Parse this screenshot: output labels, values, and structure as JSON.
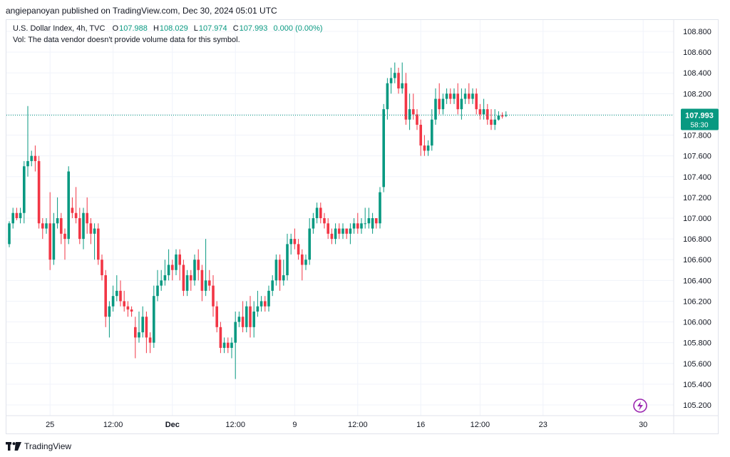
{
  "header": {
    "published": "angiepanoyan published on TradingView.com, Dec 30, 2024 05:01 UTC"
  },
  "legend": {
    "symbol": "U.S. Dollar Index, 4h, TVC",
    "open_label": "O",
    "open": "107.988",
    "high_label": "H",
    "high": "108.029",
    "low_label": "L",
    "low": "107.974",
    "close_label": "C",
    "close": "107.993",
    "change": "0.000 (0.00%)",
    "vol_note": "Vol: The data vendor doesn't provide volume data for this symbol."
  },
  "price_tag": {
    "price": "107.993",
    "countdown": "58:30"
  },
  "footer": {
    "brand": "TradingView"
  },
  "colors": {
    "up": "#089981",
    "down": "#f23645",
    "grid": "#f0f3fa",
    "last_price_line": "#089981"
  },
  "chart_data": {
    "type": "candlestick",
    "title": "",
    "y_axis": {
      "side": "right",
      "ticks": [
        "108.800",
        "108.600",
        "108.400",
        "108.200",
        "108.000",
        "107.800",
        "107.600",
        "107.400",
        "107.200",
        "107.000",
        "106.800",
        "106.600",
        "106.400",
        "106.200",
        "106.000",
        "105.800",
        "105.600",
        "105.400",
        "105.200"
      ],
      "range": [
        105.1,
        108.9
      ]
    },
    "x_axis": {
      "ticks": [
        {
          "label": "25",
          "bar": 11,
          "bold": false
        },
        {
          "label": "12:00",
          "bar": 28,
          "bold": false
        },
        {
          "label": "Dec",
          "bar": 44,
          "bold": true
        },
        {
          "label": "12:00",
          "bar": 61,
          "bold": false
        },
        {
          "label": "9",
          "bar": 77,
          "bold": false
        },
        {
          "label": "12:00",
          "bar": 94,
          "bold": false
        },
        {
          "label": "16",
          "bar": 111,
          "bold": false
        },
        {
          "label": "12:00",
          "bar": 127,
          "bold": false
        },
        {
          "label": "23",
          "bar": 144,
          "bold": false
        },
        {
          "label": "30",
          "bar": 171,
          "bold": false
        }
      ]
    },
    "last_price": 107.993,
    "candles": [
      [
        106.75,
        106.95,
        106.72,
        106.97
      ],
      [
        106.95,
        107.05,
        106.9,
        107.1
      ],
      [
        107.05,
        107.0,
        106.98,
        107.1
      ],
      [
        107.0,
        107.05,
        106.95,
        107.1
      ],
      [
        107.05,
        107.5,
        106.95,
        107.55
      ],
      [
        107.5,
        107.55,
        107.4,
        108.08
      ],
      [
        107.55,
        107.6,
        107.5,
        107.65
      ],
      [
        107.6,
        107.55,
        107.45,
        107.7
      ],
      [
        107.55,
        106.95,
        106.9,
        107.6
      ],
      [
        106.95,
        106.9,
        106.8,
        107.0
      ],
      [
        106.9,
        106.95,
        106.85,
        107.0
      ],
      [
        106.95,
        106.6,
        106.5,
        107.25
      ],
      [
        106.6,
        106.95,
        106.55,
        107.05
      ],
      [
        106.95,
        107.0,
        106.9,
        107.2
      ],
      [
        107.0,
        106.85,
        106.75,
        107.05
      ],
      [
        106.85,
        106.8,
        106.6,
        106.9
      ],
      [
        106.8,
        107.45,
        106.75,
        107.5
      ],
      [
        107.1,
        107.05,
        107.0,
        107.2
      ],
      [
        107.05,
        107.0,
        106.95,
        107.3
      ],
      [
        107.0,
        106.8,
        106.75,
        107.1
      ],
      [
        106.8,
        107.05,
        106.7,
        107.1
      ],
      [
        107.05,
        106.95,
        106.85,
        107.2
      ],
      [
        106.95,
        106.85,
        106.75,
        107.0
      ],
      [
        106.85,
        106.9,
        106.6,
        106.95
      ],
      [
        106.9,
        106.6,
        106.55,
        106.95
      ],
      [
        106.6,
        106.45,
        106.4,
        106.65
      ],
      [
        106.45,
        106.05,
        105.95,
        106.5
      ],
      [
        106.05,
        106.15,
        105.85,
        106.2
      ],
      [
        106.15,
        106.25,
        106.1,
        106.35
      ],
      [
        106.25,
        106.3,
        106.2,
        106.45
      ],
      [
        106.3,
        106.2,
        106.15,
        106.4
      ],
      [
        106.2,
        106.15,
        106.1,
        106.3
      ],
      [
        106.15,
        106.12,
        106.05,
        106.2
      ],
      [
        106.12,
        106.1,
        106.05,
        106.15
      ],
      [
        105.95,
        105.85,
        105.65,
        106.05
      ],
      [
        105.85,
        105.9,
        105.8,
        106.1
      ],
      [
        105.9,
        106.05,
        105.85,
        106.15
      ],
      [
        106.05,
        105.85,
        105.7,
        106.1
      ],
      [
        105.85,
        105.8,
        105.7,
        105.9
      ],
      [
        105.8,
        106.25,
        105.75,
        106.35
      ],
      [
        106.25,
        106.35,
        106.2,
        106.5
      ],
      [
        106.35,
        106.4,
        106.3,
        106.5
      ],
      [
        106.4,
        106.45,
        106.35,
        106.6
      ],
      [
        106.45,
        106.55,
        106.4,
        106.7
      ],
      [
        106.55,
        106.5,
        106.4,
        106.6
      ],
      [
        106.5,
        106.65,
        106.45,
        106.7
      ],
      [
        106.65,
        106.55,
        106.4,
        106.7
      ],
      [
        106.55,
        106.3,
        106.25,
        106.6
      ],
      [
        106.3,
        106.45,
        106.25,
        106.5
      ],
      [
        106.45,
        106.4,
        106.3,
        106.5
      ],
      [
        106.4,
        106.6,
        106.35,
        106.65
      ],
      [
        106.6,
        106.5,
        106.4,
        106.7
      ],
      [
        106.5,
        106.3,
        106.2,
        106.55
      ],
      [
        106.3,
        106.4,
        106.25,
        106.8
      ],
      [
        106.4,
        106.35,
        106.3,
        106.5
      ],
      [
        106.35,
        106.15,
        106.05,
        106.45
      ],
      [
        106.15,
        105.95,
        105.9,
        106.2
      ],
      [
        105.95,
        105.75,
        105.7,
        106.0
      ],
      [
        105.75,
        105.8,
        105.7,
        105.85
      ],
      [
        105.8,
        105.75,
        105.7,
        105.85
      ],
      [
        105.75,
        105.8,
        105.65,
        105.85
      ],
      [
        105.8,
        106.0,
        105.45,
        106.1
      ],
      [
        106.0,
        106.05,
        105.95,
        106.1
      ],
      [
        106.05,
        105.95,
        105.9,
        106.2
      ],
      [
        105.95,
        106.15,
        105.9,
        106.2
      ],
      [
        106.15,
        105.95,
        105.85,
        106.25
      ],
      [
        105.95,
        106.1,
        105.85,
        106.2
      ],
      [
        106.1,
        106.15,
        106.05,
        106.3
      ],
      [
        106.15,
        106.2,
        106.1,
        106.25
      ],
      [
        106.2,
        106.15,
        106.1,
        106.25
      ],
      [
        106.15,
        106.3,
        106.1,
        106.35
      ],
      [
        106.3,
        106.4,
        106.25,
        106.45
      ],
      [
        106.4,
        106.6,
        106.35,
        106.65
      ],
      [
        106.6,
        106.4,
        106.3,
        106.65
      ],
      [
        106.4,
        106.45,
        106.35,
        106.6
      ],
      [
        106.45,
        106.75,
        106.4,
        106.85
      ],
      [
        106.75,
        106.8,
        106.65,
        106.85
      ],
      [
        106.8,
        106.75,
        106.7,
        106.9
      ],
      [
        106.75,
        106.65,
        106.6,
        106.8
      ],
      [
        106.65,
        106.55,
        106.4,
        106.7
      ],
      [
        106.55,
        106.6,
        106.5,
        106.65
      ],
      [
        106.6,
        106.9,
        106.55,
        107.0
      ],
      [
        106.9,
        107.0,
        106.85,
        107.05
      ],
      [
        107.0,
        107.1,
        106.95,
        107.15
      ],
      [
        107.1,
        107.0,
        106.95,
        107.15
      ],
      [
        107.0,
        106.95,
        106.9,
        107.05
      ],
      [
        106.95,
        106.85,
        106.8,
        107.0
      ],
      [
        106.85,
        106.8,
        106.75,
        106.9
      ],
      [
        106.8,
        106.9,
        106.75,
        106.95
      ],
      [
        106.9,
        106.85,
        106.8,
        106.95
      ],
      [
        106.85,
        106.9,
        106.8,
        106.95
      ],
      [
        106.9,
        106.85,
        106.8,
        106.9
      ],
      [
        106.85,
        106.9,
        106.75,
        106.95
      ],
      [
        106.9,
        106.95,
        106.85,
        107.0
      ],
      [
        106.95,
        106.9,
        106.85,
        107.05
      ],
      [
        106.9,
        106.95,
        106.85,
        107.0
      ],
      [
        106.95,
        106.95,
        106.9,
        107.1
      ],
      [
        106.95,
        107.0,
        106.9,
        107.1
      ],
      [
        106.9,
        107.0,
        106.85,
        107.05
      ],
      [
        107.0,
        106.95,
        106.9,
        107.0
      ],
      [
        106.95,
        107.25,
        106.9,
        107.3
      ],
      [
        107.3,
        108.05,
        107.25,
        108.1
      ],
      [
        108.05,
        108.3,
        107.95,
        108.35
      ],
      [
        108.3,
        108.35,
        108.2,
        108.45
      ],
      [
        108.35,
        108.4,
        108.3,
        108.5
      ],
      [
        108.4,
        108.25,
        108.2,
        108.45
      ],
      [
        108.25,
        108.3,
        108.2,
        108.5
      ],
      [
        108.3,
        107.95,
        107.9,
        108.4
      ],
      [
        107.95,
        108.05,
        107.85,
        108.2
      ],
      [
        108.05,
        108.0,
        107.95,
        108.2
      ],
      [
        108.0,
        107.9,
        107.85,
        108.05
      ],
      [
        107.9,
        107.7,
        107.6,
        107.95
      ],
      [
        107.7,
        107.65,
        107.6,
        107.8
      ],
      [
        107.65,
        107.7,
        107.6,
        107.75
      ],
      [
        107.7,
        107.95,
        107.65,
        108.05
      ],
      [
        107.95,
        108.15,
        107.9,
        108.25
      ],
      [
        108.15,
        108.05,
        108.0,
        108.3
      ],
      [
        108.05,
        108.15,
        108.0,
        108.2
      ],
      [
        108.15,
        108.2,
        108.1,
        108.25
      ],
      [
        108.2,
        108.15,
        108.1,
        108.25
      ],
      [
        108.15,
        108.2,
        108.1,
        108.25
      ],
      [
        108.2,
        108.05,
        108.0,
        108.3
      ],
      [
        108.05,
        108.15,
        107.95,
        108.25
      ],
      [
        108.15,
        108.2,
        108.1,
        108.25
      ],
      [
        108.2,
        108.15,
        108.1,
        108.3
      ],
      [
        108.15,
        108.2,
        108.1,
        108.25
      ],
      [
        108.2,
        108.05,
        108.0,
        108.25
      ],
      [
        108.05,
        108.0,
        107.95,
        108.1
      ],
      [
        108.0,
        108.05,
        107.95,
        108.15
      ],
      [
        108.05,
        107.95,
        107.9,
        108.1
      ],
      [
        107.95,
        107.9,
        107.85,
        108.05
      ],
      [
        107.9,
        107.95,
        107.85,
        108.05
      ],
      [
        107.95,
        107.99,
        107.94,
        108.03
      ],
      [
        107.99,
        107.98,
        107.96,
        108.02
      ],
      [
        107.988,
        107.993,
        107.974,
        108.029
      ]
    ]
  }
}
